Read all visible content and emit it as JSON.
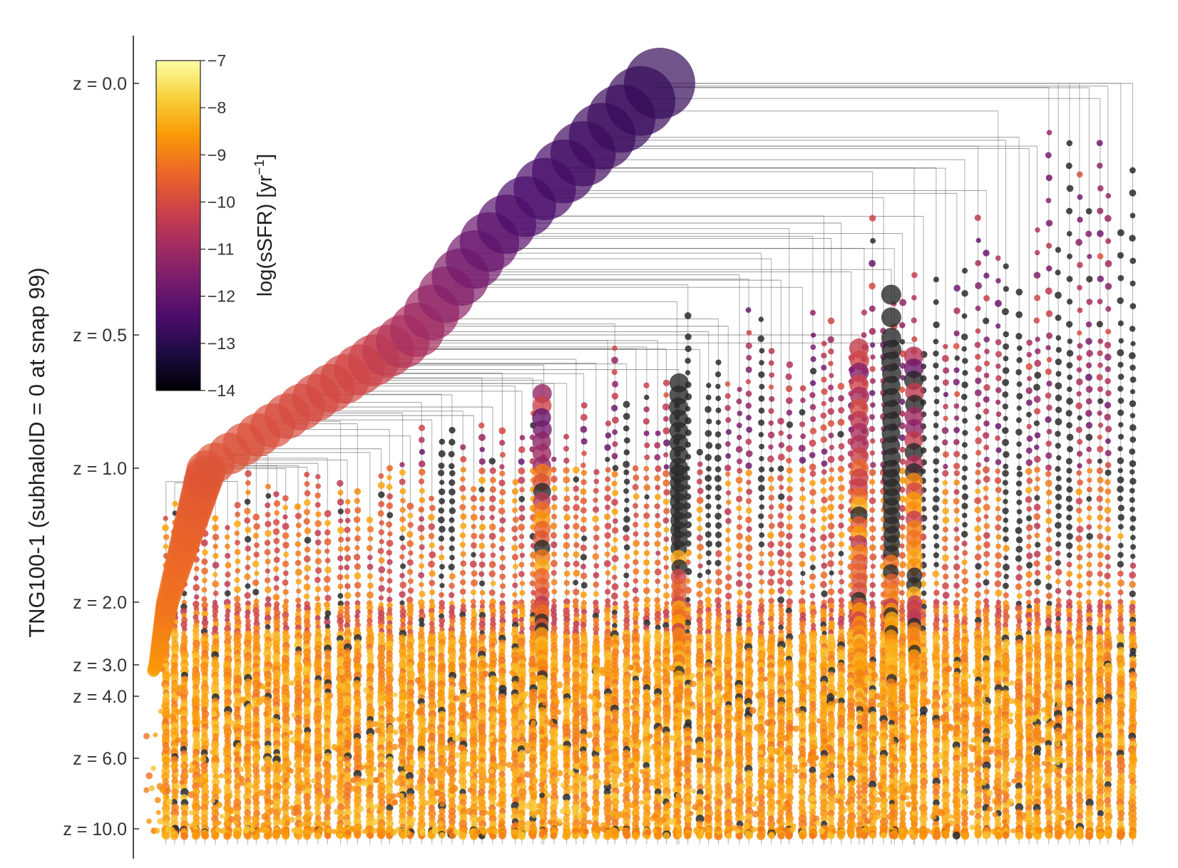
{
  "chart_data": {
    "type": "scatter",
    "subtype": "merger-tree",
    "ylabel": "TNG100-1 (subhaloID = 0 at snap 99)",
    "xlabel": "",
    "y_axis": {
      "scale": "redshift (non-linear, time-ordered)",
      "ticks": [
        {
          "label": "z = 0.0",
          "z": 0.0
        },
        {
          "label": "z = 0.5",
          "z": 0.5
        },
        {
          "label": "z = 1.0",
          "z": 1.0
        },
        {
          "label": "z = 2.0",
          "z": 2.0
        },
        {
          "label": "z = 3.0",
          "z": 3.0
        },
        {
          "label": "z = 4.0",
          "z": 4.0
        },
        {
          "label": "z = 6.0",
          "z": 6.0
        },
        {
          "label": "z = 10.0",
          "z": 10.0
        }
      ]
    },
    "colorbar": {
      "label": "log(sSFR) [yr⁻¹]",
      "label_main": "log(sSFR) [yr",
      "label_sup": "−1",
      "label_tail": "]",
      "range": [
        -14,
        -7
      ],
      "colormap": "inferno",
      "placement": "top-left",
      "ticks": [
        {
          "label": "−7",
          "value": -7
        },
        {
          "label": "−8",
          "value": -8
        },
        {
          "label": "−9",
          "value": -9
        },
        {
          "label": "−10",
          "value": -10
        },
        {
          "label": "−11",
          "value": -11
        },
        {
          "label": "−12",
          "value": -12
        },
        {
          "label": "−13",
          "value": -13
        },
        {
          "label": "−14",
          "value": -14
        }
      ]
    },
    "grid": false,
    "colors": {
      "branch_line": "#6e6e6e",
      "quenched_node": "#2a2a2a",
      "inferno_stops": [
        "#000004",
        "#1b0c41",
        "#4a0c6b",
        "#781c6d",
        "#a52c60",
        "#cf4446",
        "#ed6925",
        "#fb9b06",
        "#f7d13d",
        "#fcffa4"
      ]
    }
  }
}
